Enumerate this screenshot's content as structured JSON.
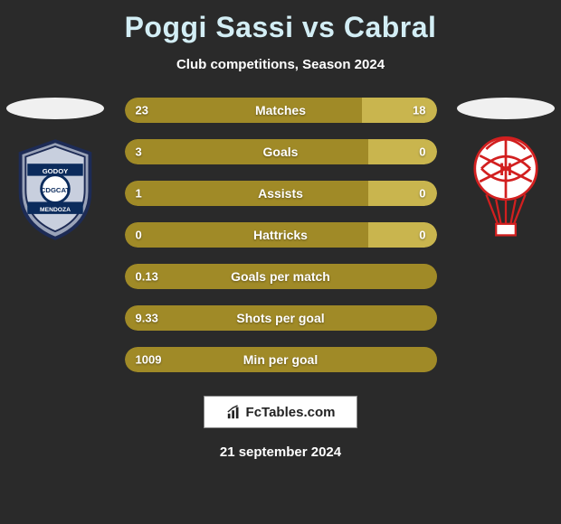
{
  "title": "Poggi Sassi vs Cabral",
  "subtitle": "Club competitions, Season 2024",
  "date": "21 september 2024",
  "brand": "FcTables.com",
  "colors": {
    "bar_left": "#a08a27",
    "bar_right": "#c9b54e",
    "background": "#2a2a2a"
  },
  "stats": [
    {
      "label": "Matches",
      "left_val": "23",
      "right_val": "18",
      "left_pct": 76,
      "right_pct": 24
    },
    {
      "label": "Goals",
      "left_val": "3",
      "right_val": "0",
      "left_pct": 78,
      "right_pct": 22
    },
    {
      "label": "Assists",
      "left_val": "1",
      "right_val": "0",
      "left_pct": 78,
      "right_pct": 22
    },
    {
      "label": "Hattricks",
      "left_val": "0",
      "right_val": "0",
      "left_pct": 78,
      "right_pct": 22
    },
    {
      "label": "Goals per match",
      "left_val": "0.13",
      "right_val": "",
      "left_pct": 100,
      "right_pct": 0
    },
    {
      "label": "Shots per goal",
      "left_val": "9.33",
      "right_val": "",
      "left_pct": 100,
      "right_pct": 0
    },
    {
      "label": "Min per goal",
      "left_val": "1009",
      "right_val": "",
      "left_pct": 100,
      "right_pct": 0
    }
  ],
  "crests": {
    "left": {
      "name": "Godoy Cruz",
      "shield_fill": "#9aa3b8",
      "shield_stroke": "#1d2b55",
      "band_color": "#0b2b5c",
      "text_color": "#ffffff"
    },
    "right": {
      "name": "Huracan",
      "circle_fill": "#ffffff",
      "balloon_stroke": "#d21f1f"
    }
  }
}
